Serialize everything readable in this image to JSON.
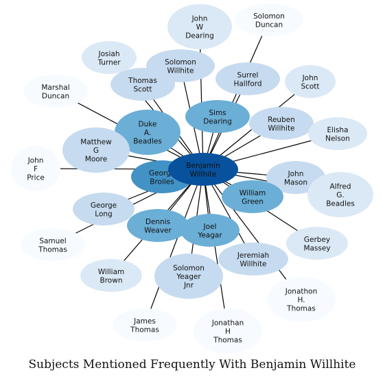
{
  "title": "Subjects Mentioned Frequently With Benjamin Willhite",
  "center": {
    "id": "benjamin",
    "label": "Benjamin\nWillhite",
    "color": "#08519c"
  },
  "nodes": [
    {
      "id": "john-w-dearing",
      "label": "John\nW\nDearing",
      "color": "#dbe9f6"
    },
    {
      "id": "solomon-duncan",
      "label": "Solomon\nDuncan",
      "color": "#f7fbff"
    },
    {
      "id": "josiah-turner",
      "label": "Josiah\nTurner",
      "color": "#dbe9f6"
    },
    {
      "id": "solomon-willhite",
      "label": "Solomon\nWillhite",
      "color": "#c6dbef"
    },
    {
      "id": "surrel-hallford",
      "label": "Surrel\nHallford",
      "color": "#c6dbef"
    },
    {
      "id": "john-scott",
      "label": "John\nScott",
      "color": "#dbe9f6"
    },
    {
      "id": "marshal-duncan",
      "label": "Marshal\nDuncan",
      "color": "#f7fbff"
    },
    {
      "id": "thomas-scott",
      "label": "Thomas\nScott",
      "color": "#c6dbef"
    },
    {
      "id": "sims-dearing",
      "label": "Sims\nDearing",
      "color": "#6baed6"
    },
    {
      "id": "reuben-willhite",
      "label": "Reuben\nWillhite",
      "color": "#c6dbef"
    },
    {
      "id": "duke-a-beadles",
      "label": "Duke\nA.\nBeadles",
      "color": "#6baed6"
    },
    {
      "id": "elisha-nelson",
      "label": "Elisha\nNelson",
      "color": "#dbe9f6"
    },
    {
      "id": "matthew-g-moore",
      "label": "Matthew\nG\nMoore",
      "color": "#c6dbef"
    },
    {
      "id": "john-f-price",
      "label": "John\nF\nPrice",
      "color": "#f7fbff"
    },
    {
      "id": "george-broiles",
      "label": "George\nBroiles",
      "color": "#4292c6"
    },
    {
      "id": "john-mason",
      "label": "John\nMason",
      "color": "#c6dbef"
    },
    {
      "id": "alfred-g-beadles",
      "label": "Alfred\nG.\nBeadles",
      "color": "#dbe9f6"
    },
    {
      "id": "william-green",
      "label": "William\nGreen",
      "color": "#6baed6"
    },
    {
      "id": "george-long",
      "label": "George\nLong",
      "color": "#c6dbef"
    },
    {
      "id": "dennis-weaver",
      "label": "Dennis\nWeaver",
      "color": "#6baed6"
    },
    {
      "id": "joel-yeagar",
      "label": "Joel\nYeagar",
      "color": "#6baed6"
    },
    {
      "id": "samuel-thomas",
      "label": "Samuel\nThomas",
      "color": "#f7fbff"
    },
    {
      "id": "gerbey-massey",
      "label": "Gerbey\nMassey",
      "color": "#dbe9f6"
    },
    {
      "id": "jeremiah-willhite",
      "label": "Jeremiah\nWillhite",
      "color": "#c6dbef"
    },
    {
      "id": "william-brown",
      "label": "William\nBrown",
      "color": "#dbe9f6"
    },
    {
      "id": "solomon-yeager-jnr",
      "label": "Solomon\nYeager\nJnr",
      "color": "#c6dbef"
    },
    {
      "id": "jonathon-h-thomas-1",
      "label": "Jonathon\nH.\nThomas",
      "color": "#f7fbff"
    },
    {
      "id": "james-thomas",
      "label": "James\nThomas",
      "color": "#f7fbff"
    },
    {
      "id": "jonathan-h-thomas-2",
      "label": "Jonathan\nH\nThomas",
      "color": "#f7fbff"
    }
  ]
}
